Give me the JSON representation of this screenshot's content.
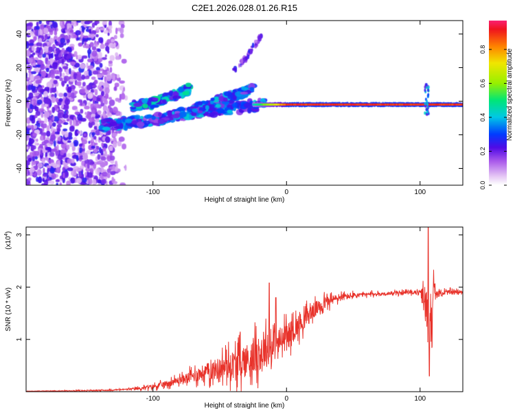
{
  "title": "C2E1.2026.028.01.26.R15",
  "colors": {
    "frame": "#000000",
    "snr_line": "#e8322a",
    "background": "#ffffff"
  },
  "colorbar": {
    "label": "Normalized spectral amplitude",
    "ticks": [
      "0.0",
      "0.2",
      "0.4",
      "0.6",
      "0.8"
    ],
    "tick_values": [
      0.0,
      0.2,
      0.4,
      0.6,
      0.8
    ],
    "range": [
      0,
      0.97
    ]
  },
  "chart_data": [
    {
      "type": "heatmap",
      "title": "C2E1.2026.028.01.26.R15",
      "xlabel": "Height of straight line (km)",
      "ylabel": "Frequency (Hz)",
      "xlim": [
        -195,
        132
      ],
      "ylim": [
        -50,
        48
      ],
      "x_ticks": [
        -100,
        0,
        100
      ],
      "x_tick_labels": [
        "-100",
        "0",
        "100"
      ],
      "y_ticks": [
        -40,
        -20,
        0,
        20,
        40
      ],
      "y_tick_labels": [
        "-40",
        "-20",
        "0",
        "20",
        "40"
      ],
      "features": [
        {
          "name": "diffuse-noise",
          "x_range": [
            -195,
            -120
          ],
          "y_range": [
            -50,
            48
          ],
          "amplitude": 0.15
        },
        {
          "name": "upper-trace",
          "x": [
            -115,
            -100,
            -90,
            -80,
            -72
          ],
          "y": [
            -3,
            -1,
            2,
            5,
            8
          ],
          "amplitude": 0.35
        },
        {
          "name": "lower-trace",
          "x": [
            -140,
            -130,
            -120,
            -110,
            -100,
            -90,
            -80,
            -70,
            -60,
            -50,
            -40,
            -30,
            -20,
            -15
          ],
          "y": [
            -14,
            -14,
            -13,
            -12,
            -11,
            -10,
            -8,
            -7,
            -6,
            -5,
            -4,
            -3,
            -2,
            -1
          ],
          "amplitude": 0.3
        },
        {
          "name": "mid-trace",
          "x": [
            -70,
            -60,
            -50,
            -40,
            -30,
            -25
          ],
          "y": [
            -5,
            -3,
            0,
            3,
            6,
            8
          ],
          "amplitude": 0.3
        },
        {
          "name": "steep-trace",
          "x": [
            -40,
            -32,
            -25,
            -18
          ],
          "y": [
            18,
            24,
            32,
            40
          ],
          "amplitude": 0.2
        },
        {
          "name": "carrier-line",
          "x": [
            -25,
            132
          ],
          "y": -2,
          "amplitude": 0.95
        },
        {
          "name": "spike-105km",
          "x": 105,
          "y_range": [
            -8,
            10
          ],
          "amplitude": 0.3
        }
      ]
    },
    {
      "type": "line",
      "xlabel": "Height of straight line (km)",
      "ylabel": "SNR (10 * v/v)",
      "y_multiplier": "(x10",
      "y_multiplier_exp": "4",
      "y_multiplier_close": ")",
      "xlim": [
        -195,
        132
      ],
      "ylim": [
        0,
        3.15
      ],
      "x_ticks": [
        -100,
        0,
        100
      ],
      "x_tick_labels": [
        "-100",
        "0",
        "100"
      ],
      "y_ticks": [
        1,
        2,
        3
      ],
      "y_tick_labels": [
        "1",
        "2",
        "3"
      ],
      "envelope": {
        "x": [
          -195,
          -150,
          -130,
          -110,
          -95,
          -80,
          -70,
          -60,
          -50,
          -40,
          -30,
          -22,
          -15,
          -10,
          -5,
          0,
          10,
          20,
          30,
          40,
          50,
          60,
          70,
          80,
          90,
          100,
          104,
          107,
          110,
          115,
          120,
          125,
          132
        ],
        "y": [
          0.01,
          0.02,
          0.03,
          0.06,
          0.12,
          0.22,
          0.3,
          0.38,
          0.45,
          0.52,
          0.6,
          0.7,
          0.8,
          0.88,
          0.95,
          1.05,
          1.3,
          1.55,
          1.72,
          1.8,
          1.84,
          1.86,
          1.87,
          1.88,
          1.9,
          1.9,
          1.7,
          1.3,
          1.85,
          1.88,
          1.9,
          1.9,
          1.92
        ]
      },
      "peaks": [
        {
          "x": -13,
          "y": 2.08
        },
        {
          "x": -8,
          "y": 1.8
        },
        {
          "x": 106,
          "y": 3.15
        },
        {
          "x": 107,
          "y": 0.3
        }
      ],
      "noise_amplitude": {
        "x": [
          -195,
          -120,
          -80,
          -50,
          -30,
          -15,
          0,
          20,
          40,
          60,
          80,
          100,
          104,
          108,
          112,
          132
        ],
        "y": [
          0.005,
          0.02,
          0.12,
          0.35,
          0.55,
          0.55,
          0.4,
          0.25,
          0.12,
          0.06,
          0.05,
          0.06,
          0.6,
          0.9,
          0.1,
          0.05
        ]
      }
    }
  ]
}
